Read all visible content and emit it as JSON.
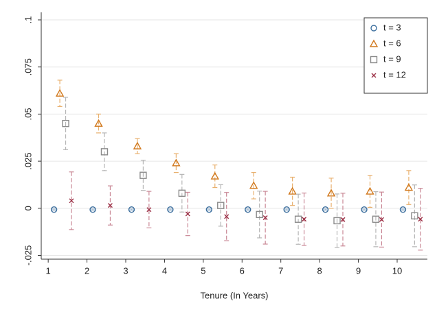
{
  "chart_data": {
    "type": "errorbar-scatter",
    "x_label": "Tenure (In Years)",
    "xlim": [
      0.82,
      10.78
    ],
    "xticks": [
      1,
      2,
      3,
      4,
      5,
      6,
      7,
      8,
      9,
      10
    ],
    "ylim": [
      -0.027,
      0.104
    ],
    "yticks": [
      {
        "value": -0.025,
        "label": "-.025"
      },
      0,
      {
        "value": 0.025,
        "label": ".025"
      },
      {
        "value": 0.05,
        "label": ".05"
      },
      {
        "value": 0.075,
        "label": ".075"
      },
      {
        "value": 0.1,
        "label": ".1"
      }
    ],
    "grid": true,
    "legend": "upper right",
    "series": [
      {
        "name": "t = 3",
        "marker": "circle",
        "color": "#3d6f9e",
        "errorbar_color": "#9db7cf",
        "x": [
          1.15,
          2.15,
          3.15,
          4.15,
          5.15,
          6.15,
          7.15,
          8.15,
          9.15,
          10.15
        ],
        "values": [
          -0.0007,
          -0.0007,
          -0.0007,
          -0.0007,
          -0.0007,
          -0.0007,
          -0.0007,
          -0.0007,
          -0.0007,
          -0.0007
        ],
        "errors": [
          0.0003,
          0.0003,
          0.0003,
          0.0003,
          0.0003,
          0.0003,
          0.0003,
          0.0003,
          0.0003,
          0.0003
        ]
      },
      {
        "name": "t = 6",
        "marker": "triangle",
        "color": "#d1781c",
        "errorbar_color": "#e8b06e",
        "x": [
          1.3,
          2.3,
          3.3,
          4.3,
          5.3,
          6.3,
          7.3,
          8.3,
          9.3,
          10.3
        ],
        "values": [
          0.061,
          0.045,
          0.033,
          0.024,
          0.017,
          0.012,
          0.009,
          0.008,
          0.009,
          0.011
        ],
        "errors": [
          0.007,
          0.005,
          0.004,
          0.005,
          0.006,
          0.007,
          0.0075,
          0.008,
          0.0085,
          0.009
        ]
      },
      {
        "name": "t = 9",
        "marker": "square",
        "color": "#8a8a8a",
        "errorbar_color": "#b5b5b5",
        "x": [
          1.45,
          2.45,
          3.45,
          4.45,
          5.45,
          6.45,
          7.45,
          8.45,
          9.45,
          10.45
        ],
        "values": [
          0.045,
          0.03,
          0.0175,
          0.008,
          0.0015,
          -0.0033,
          -0.0058,
          -0.0066,
          -0.0058,
          -0.004
        ],
        "errors": [
          0.0139,
          0.01,
          0.008,
          0.01,
          0.011,
          0.0124,
          0.0133,
          0.0142,
          0.0146,
          0.0164
        ]
      },
      {
        "name": "t = 12",
        "marker": "x",
        "color": "#9b2f45",
        "errorbar_color": "#c98795",
        "x": [
          1.6,
          2.6,
          3.6,
          4.6,
          5.6,
          6.6,
          7.6,
          8.6,
          9.6,
          10.6
        ],
        "values": [
          0.004,
          0.0015,
          -0.0007,
          -0.003,
          -0.0044,
          -0.005,
          -0.0058,
          -0.006,
          -0.006,
          -0.0058
        ],
        "errors": [
          0.0153,
          0.0104,
          0.0097,
          0.0115,
          0.0128,
          0.014,
          0.0139,
          0.014,
          0.0146,
          0.0164
        ]
      }
    ]
  }
}
